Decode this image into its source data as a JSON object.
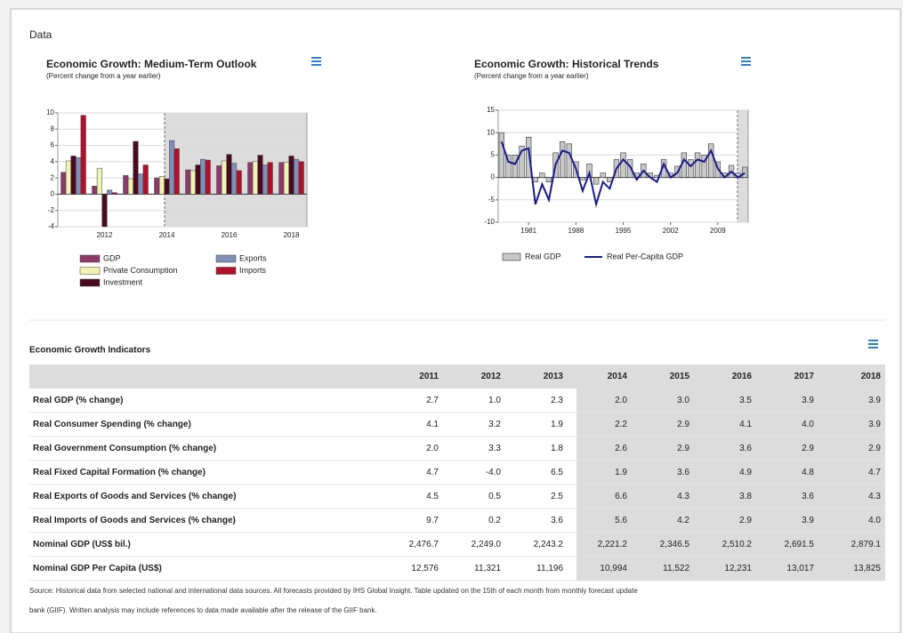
{
  "panel_title": "Data",
  "chart_data": [
    {
      "type": "bar",
      "title": "Economic Growth: Medium-Term Outlook",
      "subtitle": "(Percent change from a year earlier)",
      "categories": [
        null,
        "2012",
        null,
        "2014",
        null,
        "2016",
        null,
        "2018"
      ],
      "series": [
        {
          "name": "GDP",
          "color": "#8b3a6b",
          "values": [
            2.7,
            1.0,
            2.3,
            2.0,
            3.0,
            3.5,
            3.9,
            3.9
          ]
        },
        {
          "name": "Private Consumption",
          "color": "#f2f2b4",
          "values": [
            4.1,
            3.2,
            1.9,
            2.2,
            2.9,
            4.1,
            4.0,
            3.9
          ]
        },
        {
          "name": "Investment",
          "color": "#4a0a1e",
          "values": [
            4.7,
            -4.0,
            6.5,
            1.9,
            3.6,
            4.9,
            4.8,
            4.7
          ]
        },
        {
          "name": "Exports",
          "color": "#7f8fb8",
          "values": [
            4.5,
            0.5,
            2.5,
            6.6,
            4.3,
            3.8,
            3.6,
            4.3
          ]
        },
        {
          "name": "Imports",
          "color": "#b0102a",
          "values": [
            9.7,
            0.2,
            3.6,
            5.6,
            4.2,
            2.9,
            3.9,
            4.0
          ]
        }
      ],
      "ylim": [
        -4,
        10
      ],
      "yticks": [
        -4,
        -2,
        0,
        2,
        4,
        6,
        8,
        10
      ],
      "grid": true
    },
    {
      "type": "combo",
      "title": "Economic Growth: Historical Trends",
      "subtitle": "(Percent change from a year earlier)",
      "x": [
        1977,
        1978,
        1979,
        1980,
        1981,
        1982,
        1983,
        1984,
        1985,
        1986,
        1987,
        1988,
        1989,
        1990,
        1991,
        1992,
        1993,
        1994,
        1995,
        1996,
        1997,
        1998,
        1999,
        2000,
        2001,
        2002,
        2003,
        2004,
        2005,
        2006,
        2007,
        2008,
        2009,
        2010,
        2011,
        2012,
        2013
      ],
      "series": [
        {
          "name": "Real GDP",
          "mark": "bar",
          "color": "#c8c8c8",
          "values": [
            10,
            5,
            5,
            7,
            9,
            -1,
            1,
            -1,
            5.5,
            8,
            7.5,
            3.5,
            -0.5,
            3,
            -1.5,
            1,
            -1,
            4,
            5.5,
            4,
            1,
            3,
            1,
            0.5,
            4,
            1,
            2.5,
            5.5,
            4,
            5.5,
            5,
            7.5,
            3.5,
            1,
            2.7,
            1.0,
            2.3
          ]
        },
        {
          "name": "Real Per-Capita GDP",
          "mark": "line",
          "color": "#1a1a8c",
          "values": [
            8,
            3.5,
            3,
            6,
            6.5,
            -6,
            -1.5,
            -5,
            3,
            6,
            5.5,
            2,
            -3,
            1,
            -6,
            -1,
            -2.5,
            2,
            4,
            2.5,
            -0.5,
            1.5,
            0,
            -1,
            3,
            0,
            1,
            4,
            2.5,
            4,
            3.5,
            6,
            2,
            0,
            1.3,
            0,
            1
          ]
        }
      ],
      "xlim": [
        1976.5,
        2013.5
      ],
      "xticks": [
        1981,
        1988,
        1995,
        2002,
        2009
      ],
      "ylim": [
        -10,
        15
      ],
      "yticks": [
        -10,
        -5,
        0,
        5,
        10,
        15
      ],
      "grid": true
    }
  ],
  "table": {
    "title": "Economic Growth Indicators",
    "columns": [
      "2011",
      "2012",
      "2013",
      "2014",
      "2015",
      "2016",
      "2017",
      "2018"
    ],
    "rows": [
      [
        "Real GDP (% change)",
        "2.7",
        "1.0",
        "2.3",
        "2.0",
        "3.0",
        "3.5",
        "3.9",
        "3.9"
      ],
      [
        "Real Consumer Spending (% change)",
        "4.1",
        "3.2",
        "1.9",
        "2.2",
        "2.9",
        "4.1",
        "4.0",
        "3.9"
      ],
      [
        "Real Government Consumption (% change)",
        "2.0",
        "3.3",
        "1.8",
        "2.6",
        "2.9",
        "3.6",
        "2.9",
        "2.9"
      ],
      [
        "Real Fixed Capital Formation (% change)",
        "4.7",
        "-4.0",
        "6.5",
        "1.9",
        "3.6",
        "4.9",
        "4.8",
        "4.7"
      ],
      [
        "Real Exports of Goods and Services (% change)",
        "4.5",
        "0.5",
        "2.5",
        "6.6",
        "4.3",
        "3.8",
        "3.6",
        "4.3"
      ],
      [
        "Real Imports of Goods and Services (% change)",
        "9.7",
        "0.2",
        "3.6",
        "5.6",
        "4.2",
        "2.9",
        "3.9",
        "4.0"
      ],
      [
        "Nominal GDP (US$ bil.)",
        "2,476.7",
        "2,249.0",
        "2,243.2",
        "2,221.2",
        "2,346.5",
        "2,510.2",
        "2,691.5",
        "2,879.1"
      ],
      [
        "Nominal GDP Per Capita (US$)",
        "12,576",
        "11,321",
        "11,196",
        "10,994",
        "11,522",
        "12,231",
        "13,017",
        "13,825"
      ]
    ]
  },
  "source": [
    "Source: Historical data from selected national and international data sources. All forecasts provided by IHS Global Insight. Table updated on the 15th of each month from monthly forecast update",
    "bank (GIIF). Written analysis may include references to data made available after the release of the GIIF bank."
  ]
}
